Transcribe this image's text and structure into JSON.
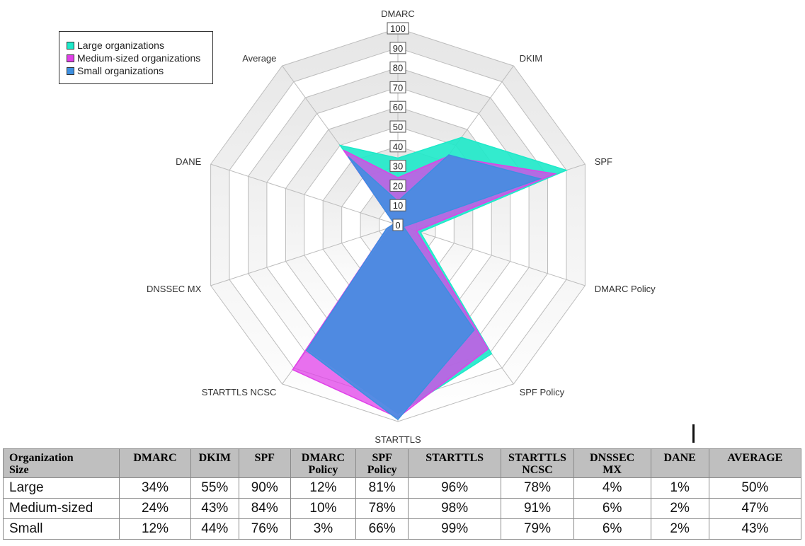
{
  "chart_data": {
    "type": "radar",
    "axes": [
      "DMARC",
      "DKIM",
      "SPF",
      "DMARC Policy",
      "SPF Policy",
      "STARTTLS",
      "STARTTLS NCSC",
      "DNSSEC MX",
      "DANE",
      "Average"
    ],
    "ticks": [
      "0",
      "10",
      "20",
      "30",
      "40",
      "50",
      "60",
      "70",
      "80",
      "90",
      "100"
    ],
    "range": [
      0,
      100
    ],
    "grid": true,
    "legend_position": "top-left",
    "series": [
      {
        "name": "Large organizations",
        "color": "#1de9c9",
        "values": [
          34,
          55,
          90,
          12,
          81,
          96,
          78,
          4,
          1,
          50
        ]
      },
      {
        "name": "Medium-sized organizations",
        "color": "#e040e8",
        "values": [
          24,
          43,
          84,
          10,
          78,
          98,
          91,
          6,
          2,
          47
        ]
      },
      {
        "name": "Small organizations",
        "color": "#3d8fe0",
        "values": [
          12,
          44,
          76,
          3,
          66,
          99,
          79,
          6,
          2,
          43
        ]
      }
    ]
  },
  "table": {
    "headers": [
      [
        "Organization",
        "Size"
      ],
      [
        "DMARC"
      ],
      [
        "DKIM"
      ],
      [
        "SPF"
      ],
      [
        "DMARC",
        "Policy"
      ],
      [
        "SPF",
        "Policy"
      ],
      [
        "STARTTLS"
      ],
      [
        "STARTTLS",
        "NCSC"
      ],
      [
        "DNSSEC",
        "MX"
      ],
      [
        "DANE"
      ],
      [
        "AVERAGE"
      ]
    ],
    "rows": [
      {
        "label": "Large",
        "cells": [
          "34%",
          "55%",
          "90%",
          "12%",
          "81%",
          "96%",
          "78%",
          "4%",
          "1%",
          "50%"
        ]
      },
      {
        "label": "Medium-sized",
        "cells": [
          "24%",
          "43%",
          "84%",
          "10%",
          "78%",
          "98%",
          "91%",
          "6%",
          "2%",
          "47%"
        ]
      },
      {
        "label": "Small",
        "cells": [
          "12%",
          "44%",
          "76%",
          "3%",
          "66%",
          "99%",
          "79%",
          "6%",
          "2%",
          "43%"
        ]
      }
    ]
  }
}
